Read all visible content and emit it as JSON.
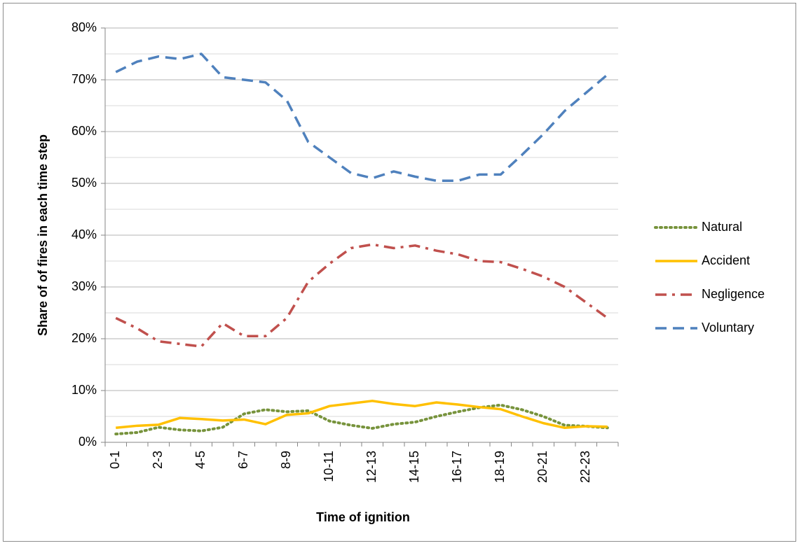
{
  "chart_data": {
    "type": "line",
    "x_label": "Time of ignition",
    "y_label": "Share of of fires in  each time step",
    "categories": [
      "0-1",
      null,
      "2-3",
      null,
      "4-5",
      null,
      "6-7",
      null,
      "8-9",
      null,
      "10-11",
      null,
      "12-13",
      null,
      "14-15",
      null,
      "16-17",
      null,
      "18-19",
      null,
      "20-21",
      null,
      "22-23",
      null
    ],
    "ylim": [
      0,
      80
    ],
    "yticks": [
      {
        "value": 0,
        "label": "0%"
      },
      {
        "value": 10,
        "label": "10%"
      },
      {
        "value": 20,
        "label": "20%"
      },
      {
        "value": 30,
        "label": "30%"
      },
      {
        "value": 40,
        "label": "40%"
      },
      {
        "value": 50,
        "label": "50%"
      },
      {
        "value": 60,
        "label": "60%"
      },
      {
        "value": 70,
        "label": "70%"
      },
      {
        "value": 80,
        "label": "80%"
      }
    ],
    "yminor": [
      5,
      15,
      25,
      35,
      45,
      55,
      65,
      75
    ],
    "grid": true,
    "legend": "right",
    "series": [
      {
        "name": "Natural",
        "color": "#77933c",
        "dash": "dot",
        "values": [
          1.6,
          1.9,
          2.9,
          2.4,
          2.2,
          2.9,
          5.5,
          6.3,
          5.9,
          6.1,
          4.1,
          3.3,
          2.7,
          3.5,
          3.9,
          5.0,
          5.9,
          6.7,
          7.2,
          6.3,
          5.0,
          3.3,
          3.1,
          2.8
        ]
      },
      {
        "name": "Accident",
        "color": "#ffc000",
        "dash": "solid",
        "values": [
          2.8,
          3.2,
          3.4,
          4.7,
          4.5,
          4.2,
          4.4,
          3.5,
          5.3,
          5.6,
          7.0,
          7.5,
          8.0,
          7.4,
          7.0,
          7.7,
          7.3,
          6.8,
          6.4,
          5.0,
          3.7,
          2.8,
          3.1,
          3.0
        ]
      },
      {
        "name": "Negligence",
        "color": "#c0504d",
        "dash": "dashdot",
        "values": [
          24,
          22,
          19.5,
          19,
          18.5,
          23,
          20.5,
          20.5,
          24,
          31,
          34.5,
          37.5,
          38.2,
          37.5,
          38,
          37,
          36.3,
          35,
          34.8,
          33.5,
          32,
          30,
          27,
          24
        ]
      },
      {
        "name": "Voluntary",
        "color": "#4f81bd",
        "dash": "dash",
        "values": [
          71.5,
          73.5,
          74.5,
          74,
          75,
          70.5,
          70,
          69.5,
          66,
          58,
          55,
          52,
          51,
          52.3,
          51.3,
          50.5,
          50.5,
          51.7,
          51.7,
          55.5,
          59.5,
          64,
          67.5,
          71
        ]
      }
    ]
  }
}
